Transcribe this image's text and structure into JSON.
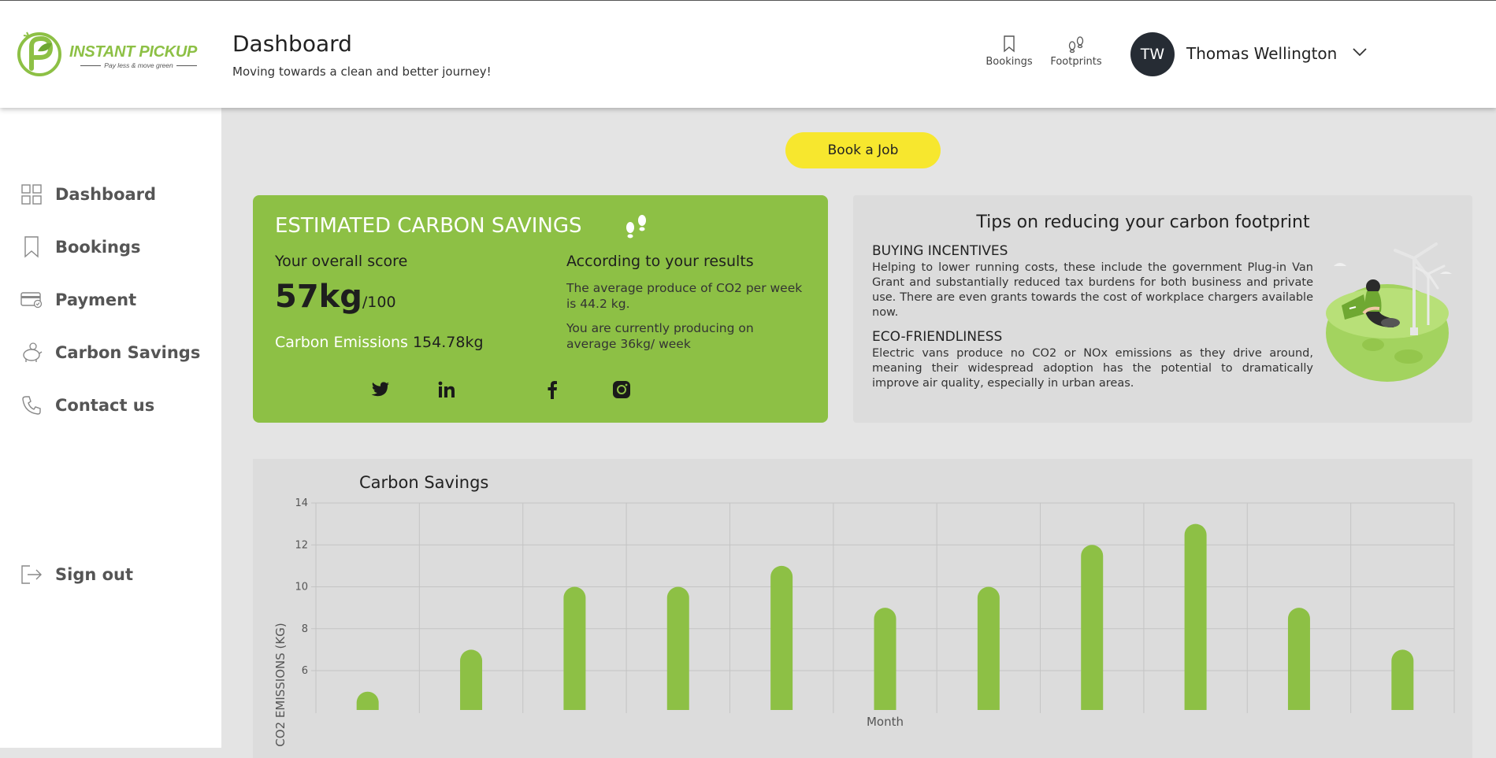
{
  "brand": {
    "name": "INSTANT PICKUP",
    "tagline": "Pay less & move green",
    "accent": "#8dc045",
    "button_yellow": "#f7e72e"
  },
  "header": {
    "title": "Dashboard",
    "subtitle": "Moving towards a clean and better journey!",
    "links": [
      {
        "label": "Bookings",
        "icon": "bookmark-icon"
      },
      {
        "label": "Footprints",
        "icon": "footprints-icon"
      }
    ],
    "user": {
      "initials": "TW",
      "name": "Thomas Wellington"
    }
  },
  "sidebar": {
    "items": [
      {
        "label": "Dashboard",
        "icon": "grid-icon"
      },
      {
        "label": "Bookings",
        "icon": "bookmark-icon"
      },
      {
        "label": "Payment",
        "icon": "credit-card-icon"
      },
      {
        "label": "Carbon Savings",
        "icon": "piggy-bank-icon"
      },
      {
        "label": "Contact us",
        "icon": "phone-icon"
      }
    ],
    "signout": {
      "label": "Sign out",
      "icon": "sign-out-icon"
    }
  },
  "main": {
    "book_button": "Book a Job",
    "savings": {
      "title": "ESTIMATED CARBON SAVINGS",
      "score_label": "Your overall score",
      "score_value": "57kg",
      "score_max": "/100",
      "emissions_label": "Carbon Emissions",
      "emissions_value": "154.78kg",
      "results_title": "According to your results",
      "results_p1": "The average produce of CO2 per week is 44.2 kg.",
      "results_p2": "You are currently producing on average 36kg/ week",
      "social": [
        "twitter-icon",
        "linkedin-icon",
        "facebook-icon",
        "instagram-icon"
      ]
    },
    "tips": {
      "title": "Tips on reducing your carbon footprint",
      "sections": [
        {
          "heading": "BUYING INCENTIVES",
          "text": "Helping to lower running costs, these include the government Plug-in Van Grant and substantially reduced tax burdens for both business and private use. There are even grants towards the cost of workplace chargers available now."
        },
        {
          "heading": "ECO-FRIENDLINESS",
          "text": "Electric vans produce no CO2 or NOx emissions as they drive around, meaning their widespread adoption has the potential to dramatically improve air quality, especially in urban areas."
        }
      ]
    }
  },
  "chart_data": {
    "type": "bar",
    "title": "Carbon Savings",
    "xlabel": "Month",
    "ylabel": "CO2 EMISSIONS (KG)",
    "categories": [
      "",
      "",
      "",
      "",
      "",
      "",
      "",
      "",
      "",
      "",
      ""
    ],
    "values": [
      5,
      7,
      10,
      10,
      11,
      9,
      10,
      12,
      13,
      9,
      7
    ],
    "yticks": [
      6,
      8,
      10,
      12,
      14
    ],
    "ylim": [
      4.2,
      14
    ],
    "grid": true,
    "color": "#8dc045"
  }
}
